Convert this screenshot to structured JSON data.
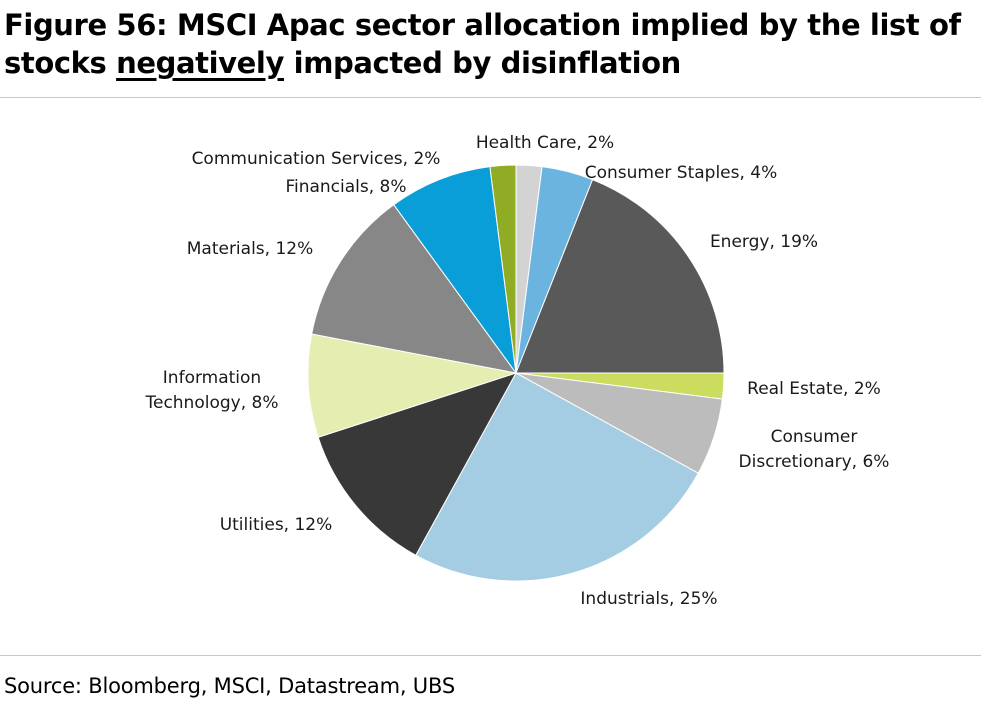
{
  "title": {
    "before": "Figure 56: MSCI Apac sector allocation implied by the list of stocks ",
    "emphasis": "negatively",
    "after": " impacted by disinflation"
  },
  "source": "Source: Bloomberg, MSCI, Datastream, UBS",
  "chart_data": {
    "type": "pie",
    "title": "Figure 56: MSCI Apac sector allocation implied by the list of stocks negatively impacted by disinflation",
    "unit": "%",
    "slices": [
      {
        "label": "Health Care, 2%",
        "name": "Health Care",
        "value": 2,
        "color": "#d3d3d3"
      },
      {
        "label": "Consumer Staples, 4%",
        "name": "Consumer Staples",
        "value": 4,
        "color": "#6cb4e0"
      },
      {
        "label": "Energy, 19%",
        "name": "Energy",
        "value": 19,
        "color": "#595959"
      },
      {
        "label": "Real Estate, 2%",
        "name": "Real Estate",
        "value": 2,
        "color": "#cbdc5e"
      },
      {
        "label": [
          "Consumer",
          "Discretionary, 6%"
        ],
        "name": "Consumer Discretionary",
        "value": 6,
        "color": "#bcbcbc"
      },
      {
        "label": "Industrials, 25%",
        "name": "Industrials",
        "value": 25,
        "color": "#a4cde4"
      },
      {
        "label": "Utilities, 12%",
        "name": "Utilities",
        "value": 12,
        "color": "#383838"
      },
      {
        "label": [
          "Information",
          "Technology, 8%"
        ],
        "name": "Information Technology",
        "value": 8,
        "color": "#e6edb1"
      },
      {
        "label": "Materials, 12%",
        "name": "Materials",
        "value": 12,
        "color": "#878787"
      },
      {
        "label": "Financials, 8%",
        "name": "Financials",
        "value": 8,
        "color": "#0a9ed8"
      },
      {
        "label": "Communication Services, 2%",
        "name": "Communication Services",
        "value": 2,
        "color": "#8fac24"
      }
    ],
    "start": "12 o'clock",
    "direction": "clockwise",
    "legend": "none",
    "labels": "outside"
  }
}
